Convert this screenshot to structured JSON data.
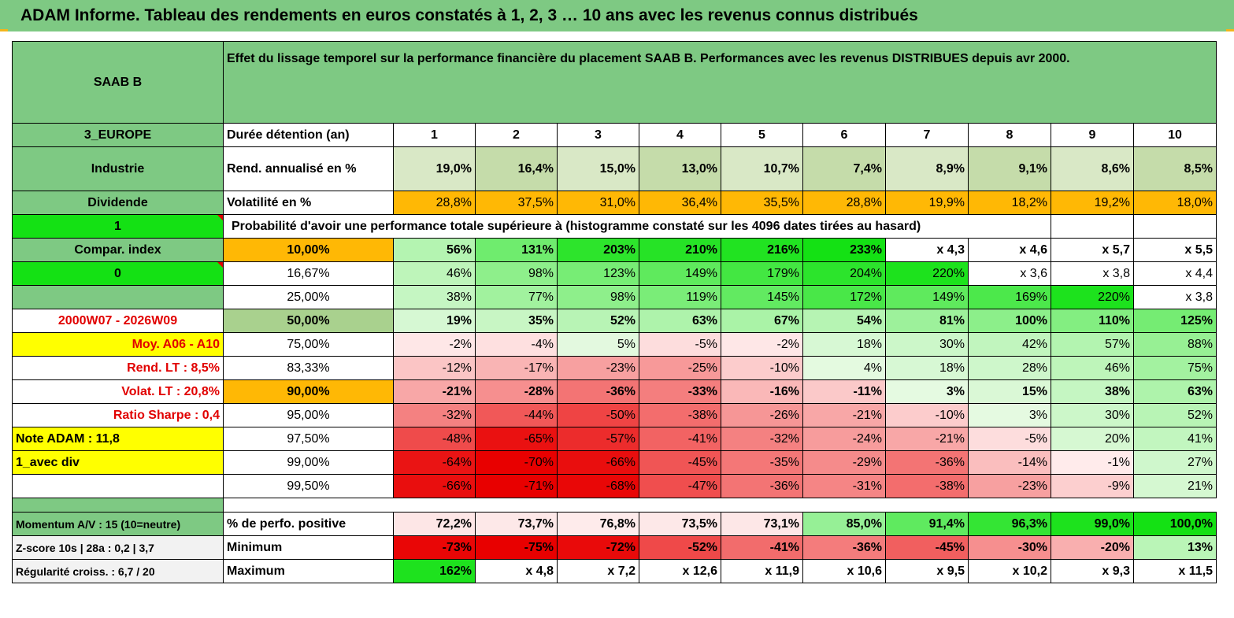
{
  "title": "ADAM Informe. Tableau des rendements en euros constatés à 1, 2, 3 … 10 ans avec les revenus connus distribués",
  "colors": {
    "header_green": "#7ec983",
    "bright_green": "#14e114",
    "yellow": "#ffff00",
    "orange": "#ffb805",
    "olive": "#a9d18e",
    "red_text": "#e10000"
  },
  "left": {
    "name": "SAAB B",
    "region": "3_EUROPE",
    "sector": "Industrie",
    "type": "Dividende",
    "val_1": "1",
    "compar_index": "Compar. index",
    "val_0": "0",
    "period": "2000W07 - 2026W09",
    "moy": "Moy. A06 - A10",
    "rend_lt": "Rend. LT :   8,5%",
    "volat_lt": "Volat. LT :   20,8%",
    "sharpe": "Ratio Sharpe :    0,4",
    "note": "Note ADAM : 11,8",
    "avec_div": "1_avec div",
    "momentum": "Momentum A/V : 15 (10=neutre)",
    "zscore": "Z-score 10s | 28a : 0,2 | 3,7",
    "regularite": "Régularité croiss. : 6,7 / 20"
  },
  "header_text": "Effet du lissage temporel sur la performance financière du placement SAAB B. Performances avec les revenus DISTRIBUES depuis avr 2000.",
  "duration_label": "Durée détention (an)",
  "years": [
    "1",
    "2",
    "3",
    "4",
    "5",
    "6",
    "7",
    "8",
    "9",
    "10"
  ],
  "rend_label": "Rend. annualisé en %",
  "rend_values": [
    "19,0%",
    "16,4%",
    "15,0%",
    "13,0%",
    "10,7%",
    "7,4%",
    "8,9%",
    "9,1%",
    "8,6%",
    "8,5%"
  ],
  "vol_label": "Volatilité en %",
  "vol_values": [
    "28,8%",
    "37,5%",
    "31,0%",
    "36,4%",
    "35,5%",
    "28,8%",
    "19,9%",
    "18,2%",
    "19,2%",
    "18,0%"
  ],
  "proba_label": "Probabilité d'avoir une performance totale supérieure à (histogramme constaté sur les 4096 dates tirées au hasard)",
  "prob_rows": [
    {
      "p": "10,00%",
      "v": [
        "56%",
        "131%",
        "203%",
        "210%",
        "216%",
        "233%",
        "x 4,3",
        "x 4,6",
        "x 5,7",
        "x 5,5"
      ]
    },
    {
      "p": "16,67%",
      "v": [
        "46%",
        "98%",
        "123%",
        "149%",
        "179%",
        "204%",
        "220%",
        "x 3,6",
        "x 3,8",
        "x 4,4"
      ]
    },
    {
      "p": "25,00%",
      "v": [
        "38%",
        "77%",
        "98%",
        "119%",
        "145%",
        "172%",
        "149%",
        "169%",
        "220%",
        "x 3,8"
      ]
    },
    {
      "p": "50,00%",
      "v": [
        "19%",
        "35%",
        "52%",
        "63%",
        "67%",
        "54%",
        "81%",
        "100%",
        "110%",
        "125%"
      ]
    },
    {
      "p": "75,00%",
      "v": [
        "-2%",
        "-4%",
        "5%",
        "-5%",
        "-2%",
        "18%",
        "30%",
        "42%",
        "57%",
        "88%"
      ]
    },
    {
      "p": "83,33%",
      "v": [
        "-12%",
        "-17%",
        "-23%",
        "-25%",
        "-10%",
        "4%",
        "18%",
        "28%",
        "46%",
        "75%"
      ]
    },
    {
      "p": "90,00%",
      "v": [
        "-21%",
        "-28%",
        "-36%",
        "-33%",
        "-16%",
        "-11%",
        "3%",
        "15%",
        "38%",
        "63%"
      ]
    },
    {
      "p": "95,00%",
      "v": [
        "-32%",
        "-44%",
        "-50%",
        "-38%",
        "-26%",
        "-21%",
        "-10%",
        "3%",
        "30%",
        "52%"
      ]
    },
    {
      "p": "97,50%",
      "v": [
        "-48%",
        "-65%",
        "-57%",
        "-41%",
        "-32%",
        "-24%",
        "-21%",
        "-5%",
        "20%",
        "41%"
      ]
    },
    {
      "p": "99,00%",
      "v": [
        "-64%",
        "-70%",
        "-66%",
        "-45%",
        "-35%",
        "-29%",
        "-36%",
        "-14%",
        "-1%",
        "27%"
      ]
    },
    {
      "p": "99,50%",
      "v": [
        "-66%",
        "-71%",
        "-68%",
        "-47%",
        "-36%",
        "-31%",
        "-38%",
        "-23%",
        "-9%",
        "21%"
      ]
    }
  ],
  "pos_label": "% de perfo. positive",
  "pos_values": [
    "72,2%",
    "73,7%",
    "76,8%",
    "73,5%",
    "73,1%",
    "85,0%",
    "91,4%",
    "96,3%",
    "99,0%",
    "100,0%"
  ],
  "min_label": "Minimum",
  "min_values": [
    "-73%",
    "-75%",
    "-72%",
    "-52%",
    "-41%",
    "-36%",
    "-45%",
    "-30%",
    "-20%",
    "13%"
  ],
  "max_label": "Maximum",
  "max_values": [
    "162%",
    "x 4,8",
    "x 7,2",
    "x 12,6",
    "x 11,9",
    "x 10,6",
    "x 9,5",
    "x 10,2",
    "x 9,3",
    "x 11,5"
  ]
}
